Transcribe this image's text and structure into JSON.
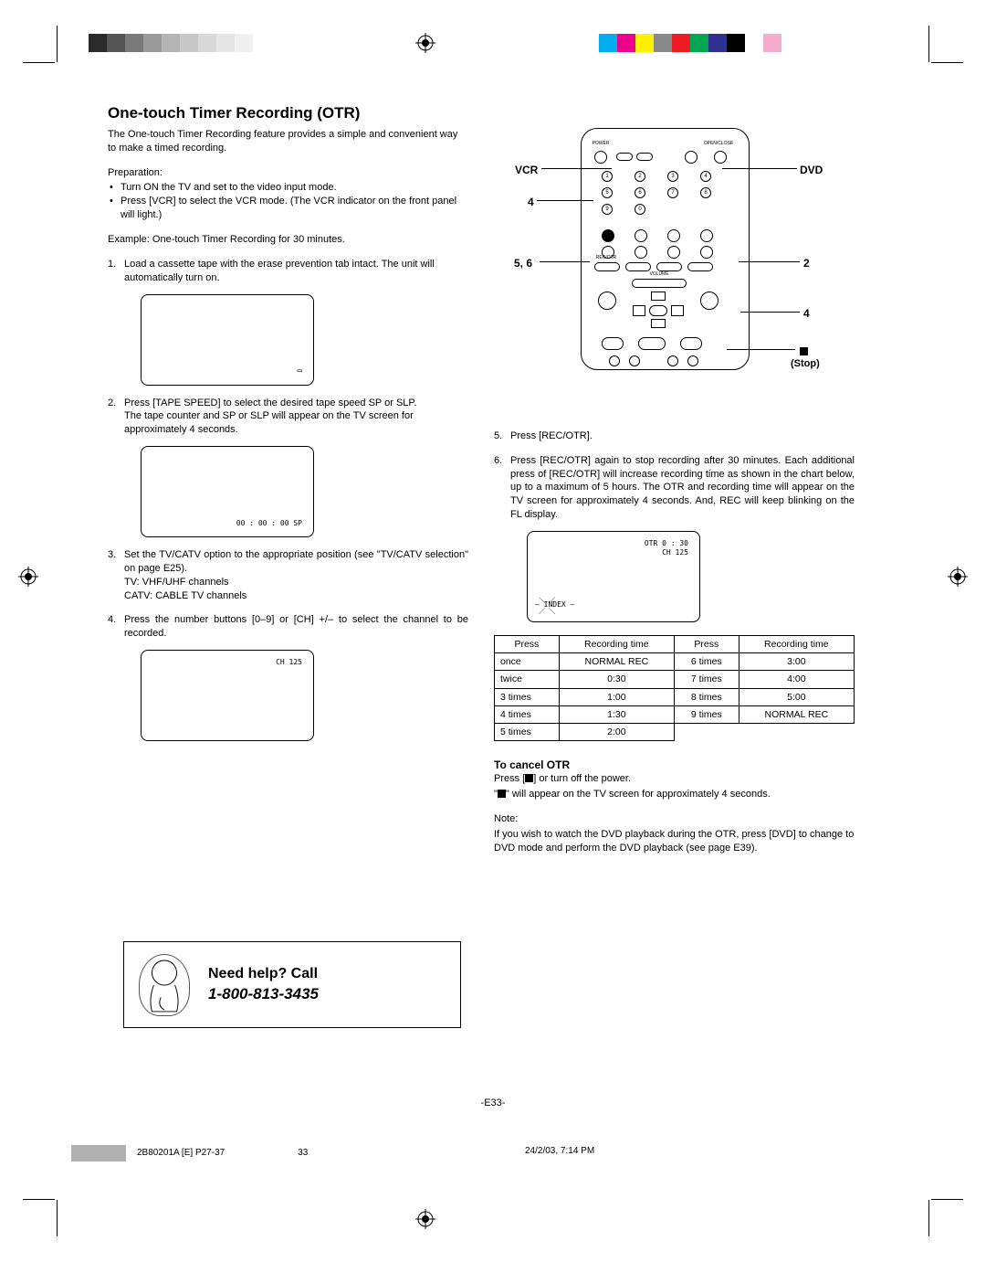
{
  "colorbar_left": [
    "#2a2a2a",
    "#555555",
    "#7a7a7a",
    "#9a9a9a",
    "#b4b4b4",
    "#c8c8c8",
    "#d8d8d8",
    "#e6e6e6",
    "#f0f0f0",
    "#ffffff"
  ],
  "colorbar_right": [
    "#00aeef",
    "#ec008c",
    "#fff200",
    "#8a8a8a",
    "#ed1c24",
    "#00a651",
    "#2e3192",
    "#000000",
    "#ffffff",
    "#f6adcd"
  ],
  "title": "One-touch Timer Recording (OTR)",
  "intro": "The One-touch Timer Recording feature provides a simple and convenient way to make a timed recording.",
  "prep_label": "Preparation:",
  "prep_items": [
    "Turn ON the TV and set to the video input mode.",
    "Press [VCR] to select the VCR mode. (The VCR indicator on the front panel will light.)"
  ],
  "example": "Example: One-touch Timer Recording for 30 minutes.",
  "step1": "Load a cassette tape with the erase prevention tab intact. The unit will automatically turn on.",
  "screen1_text": "⎕",
  "step2a": "Press [TAPE SPEED] to select the desired tape speed SP or SLP.",
  "step2b": "The tape counter and SP or SLP will appear on the TV screen for approximately 4 seconds.",
  "screen2_text": "00 : 00 : 00  SP",
  "step3a": "Set the TV/CATV option to the appropriate position (see \"TV/CATV selection\" on page E25).",
  "step3b": "TV: VHF/UHF channels",
  "step3c": "CATV: CABLE TV channels",
  "step4": "Press the number buttons [0–9] or [CH] +/– to select the channel to be recorded.",
  "screen4_text": "CH  125",
  "labels": {
    "vcr": "VCR",
    "dvd": "DVD",
    "four_l": "4",
    "fivesix": "5, 6",
    "two": "2",
    "four_r": "4",
    "stop": "■",
    "stop_word": "(Stop)"
  },
  "step5": "Press [REC/OTR].",
  "step6": "Press [REC/OTR] again to stop recording after 30 minutes. Each additional press of [REC/OTR] will increase recording time as shown in the chart below, up to a maximum of 5 hours. The OTR and recording time will appear on the TV screen for approximately 4 seconds. And, REC will keep blinking on the FL display.",
  "screen6_a": "OTR  0 : 30",
  "screen6_b": "CH  125",
  "screen6_c": "INDEX",
  "table": {
    "headers": [
      "Press",
      "Recording time",
      "Press",
      "Recording time"
    ],
    "rows": [
      [
        "once",
        "NORMAL REC",
        "6 times",
        "3:00"
      ],
      [
        "twice",
        "0:30",
        "7 times",
        "4:00"
      ],
      [
        "3 times",
        "1:00",
        "8 times",
        "5:00"
      ],
      [
        "4 times",
        "1:30",
        "9 times",
        "NORMAL REC"
      ],
      [
        "5 times",
        "2:00",
        "",
        ""
      ]
    ]
  },
  "cancel_title": "To cancel OTR",
  "cancel1a": "Press [",
  "cancel1b": "] or turn off the power.",
  "cancel2a": "\"",
  "cancel2b": "\" will appear on the TV screen for approximately 4 seconds.",
  "note_label": "Note:",
  "note_text": "If you wish to watch the DVD playback during the OTR, press [DVD] to change to DVD mode and perform the DVD playback (see page E39).",
  "help_title": "Need help? Call",
  "help_phone": "1-800-813-3435",
  "page_number": "-E33-",
  "footer_doc": "2B80201A [E] P27-37",
  "footer_page": "33",
  "footer_date": "24/2/03, 7:14 PM"
}
